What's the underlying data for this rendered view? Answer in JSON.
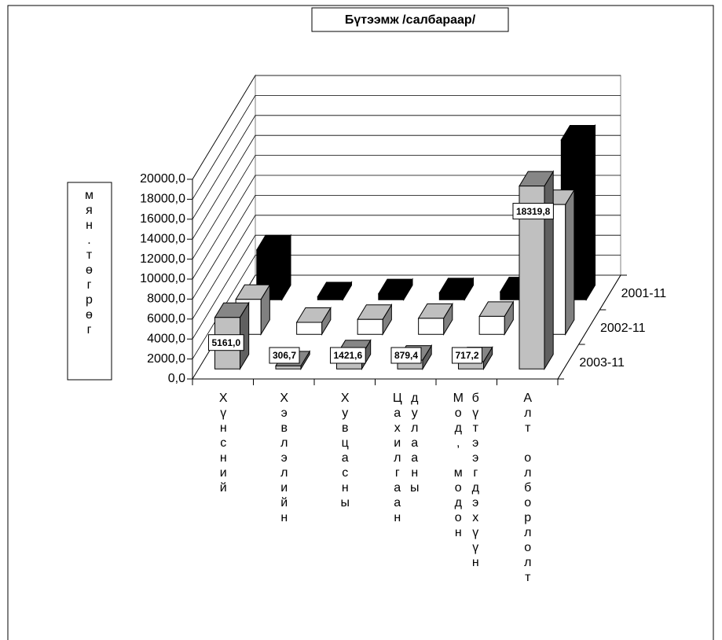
{
  "chart_data": {
    "type": "bar3d",
    "title": "Бүтээмж /салбараар/",
    "y_label": "мян.төгрөг",
    "categories": [
      "Хүнсний",
      "Хэвлэлийн",
      "Хувцасны",
      "Цахилгаан дулааны",
      "Мод, модон бүтээгдэхүүн",
      "Алт олборлолт"
    ],
    "series": [
      {
        "name": "2001-11",
        "color": "#000000",
        "values": [
          5000,
          300,
          600,
          700,
          800,
          16000
        ]
      },
      {
        "name": "2002-11",
        "color": "#ffffff",
        "values": [
          3500,
          1200,
          1500,
          1600,
          1800,
          13000
        ]
      },
      {
        "name": "2003-11",
        "color": "#c0c0c0",
        "values": [
          5161.0,
          306.7,
          1421.6,
          879.4,
          717.2,
          18319.8
        ],
        "value_labels": [
          "5161,0",
          "306,7",
          "1421,6",
          "879,4",
          "717,2",
          "18319,8"
        ]
      }
    ],
    "ylim": [
      0,
      20000
    ],
    "yticks": [
      {
        "value": 0,
        "label": "0,0"
      },
      {
        "value": 2000,
        "label": "2000,0"
      },
      {
        "value": 4000,
        "label": "4000,0"
      },
      {
        "value": 6000,
        "label": "6000,0"
      },
      {
        "value": 8000,
        "label": "8000,0"
      },
      {
        "value": 10000,
        "label": "10000,0"
      },
      {
        "value": 12000,
        "label": "12000,0"
      },
      {
        "value": 14000,
        "label": "14000,0"
      },
      {
        "value": 16000,
        "label": "16000,0"
      },
      {
        "value": 18000,
        "label": "18000,0"
      },
      {
        "value": 20000,
        "label": "20000,0"
      }
    ],
    "grid": true
  }
}
